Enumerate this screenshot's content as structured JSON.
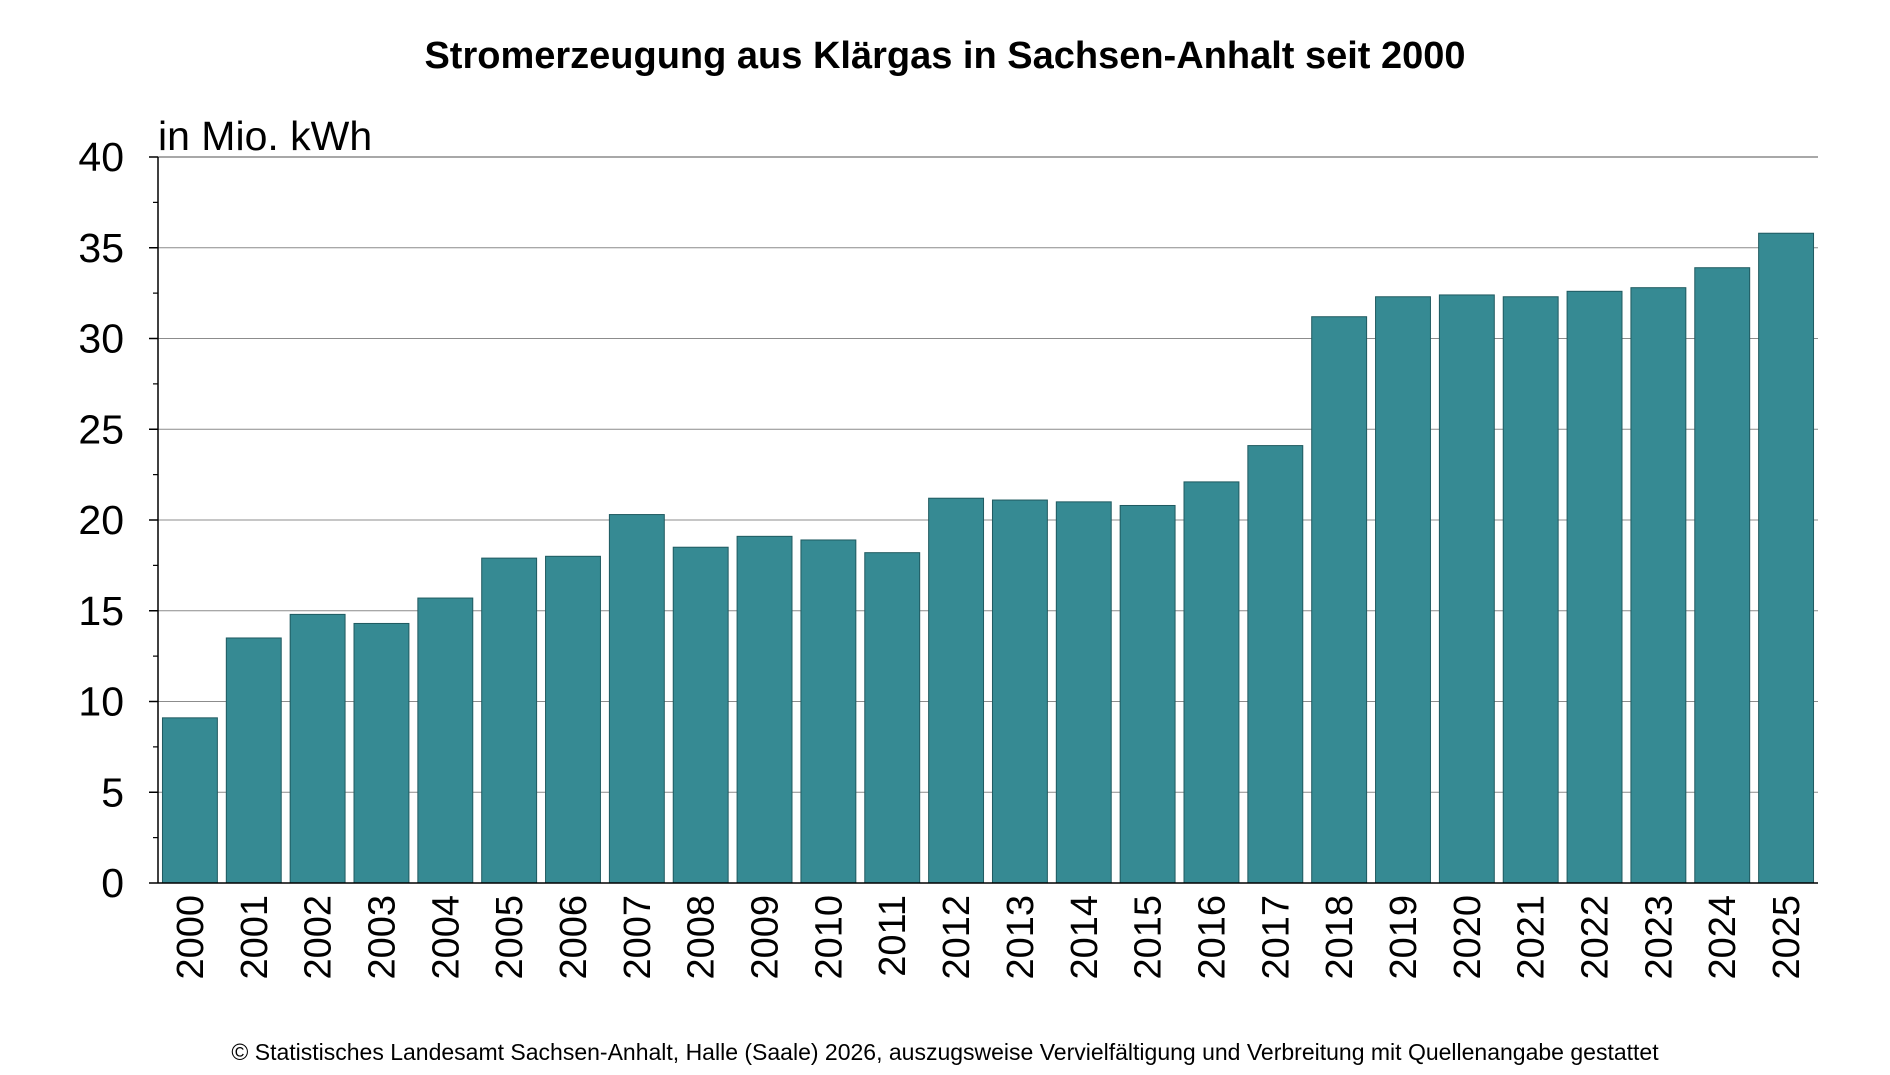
{
  "chart_data": {
    "type": "bar",
    "title": "Stromerzeugung aus Klärgas in Sachsen-Anhalt seit 2000",
    "unit_label": "in Mio. kWh",
    "xlabel": "",
    "ylabel": "",
    "ylim": [
      0,
      40
    ],
    "y_ticks": [
      "0",
      "5",
      "10",
      "15",
      "20",
      "25",
      "30",
      "35",
      "40"
    ],
    "categories": [
      "2000",
      "2001",
      "2002",
      "2003",
      "2004",
      "2005",
      "2006",
      "2007",
      "2008",
      "2009",
      "2010",
      "2011",
      "2012",
      "2013",
      "2014",
      "2015",
      "2016",
      "2017",
      "2018",
      "2019",
      "2020",
      "2021",
      "2022",
      "2023",
      "2024",
      "2025"
    ],
    "values": [
      9.1,
      13.5,
      14.8,
      14.3,
      15.7,
      17.9,
      18.0,
      20.3,
      18.5,
      19.1,
      18.9,
      18.2,
      21.2,
      21.1,
      21.0,
      20.8,
      22.1,
      24.1,
      31.2,
      32.3,
      32.4,
      32.3,
      32.6,
      32.8,
      33.9,
      35.8
    ],
    "bar_color": "#368a93",
    "grid": true,
    "legend": "none"
  },
  "footer": {
    "copyright": "© Statistisches Landesamt Sachsen-Anhalt, Halle (Saale) 2026, auszugsweise Vervielfältigung und Verbreitung mit Quellenangabe gestattet"
  }
}
